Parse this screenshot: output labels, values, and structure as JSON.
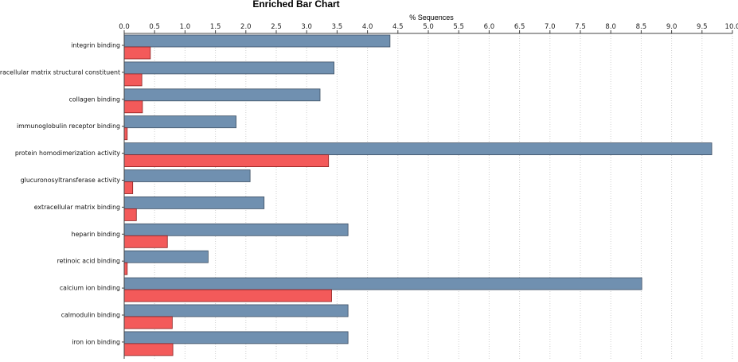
{
  "chart_data": {
    "type": "bar",
    "orientation": "horizontal",
    "title": "Enriched Bar Chart",
    "xlabel": "% Sequences",
    "ylabel": "",
    "xlim": [
      0.0,
      10.0
    ],
    "x_ticks": [
      "0.0",
      "0.5",
      "1.0",
      "1.5",
      "2.0",
      "2.5",
      "3.0",
      "3.5",
      "4.0",
      "4.5",
      "5.0",
      "5.5",
      "6.0",
      "6.5",
      "7.0",
      "7.5",
      "8.0",
      "8.5",
      "9.0",
      "9.5",
      "10.0"
    ],
    "x_axis_position": "top",
    "grid": true,
    "categories": [
      "integrin binding",
      "extracellular matrix structural constituent",
      "collagen binding",
      "immunoglobulin receptor binding",
      "protein homodimerization activity",
      "glucuronosyltransferase activity",
      "extracellular matrix binding",
      "heparin binding",
      "retinoic acid binding",
      "calcium ion binding",
      "calmodulin binding",
      "iron ion binding"
    ],
    "series": [
      {
        "color": "#7090b0",
        "values": [
          4.37,
          3.45,
          3.22,
          1.84,
          9.66,
          2.07,
          2.3,
          3.68,
          1.38,
          8.51,
          3.68,
          3.68
        ]
      },
      {
        "color": "#f35a5a",
        "values": [
          0.43,
          0.29,
          0.3,
          0.05,
          3.36,
          0.14,
          0.2,
          0.71,
          0.05,
          3.41,
          0.79,
          0.8
        ]
      }
    ]
  }
}
